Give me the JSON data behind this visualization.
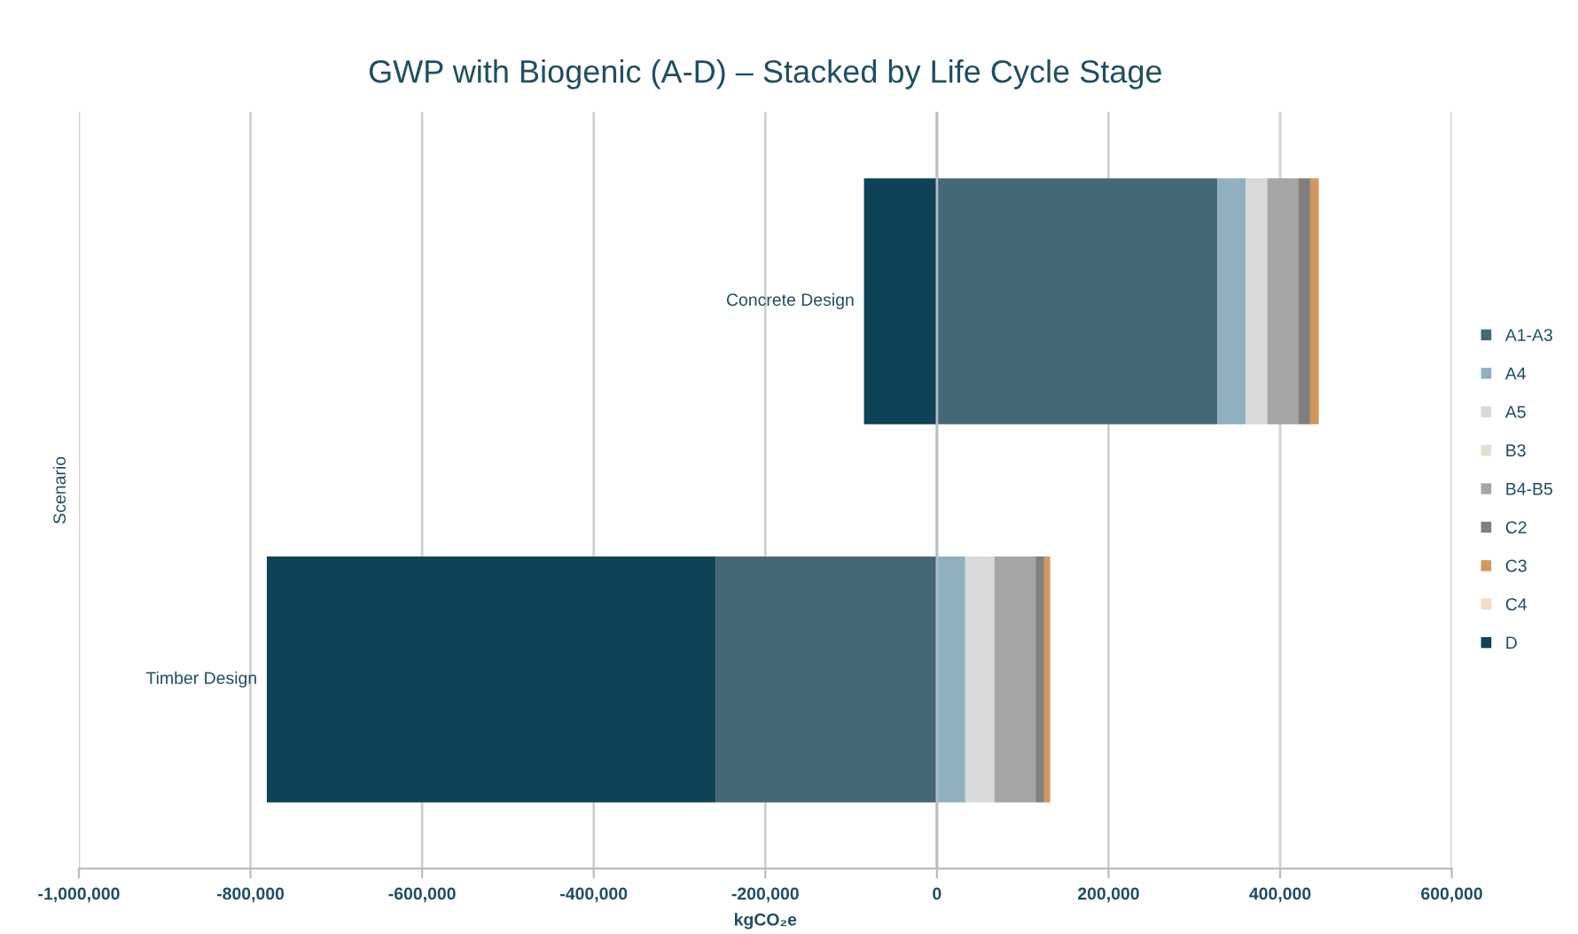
{
  "chart_data": {
    "type": "bar",
    "orientation": "horizontal",
    "stacked": true,
    "title": "GWP with Biogenic (A-D) – Stacked by Life Cycle Stage",
    "xlabel": "kgCO₂e",
    "ylabel": "Scenario",
    "categories": [
      "Concrete Design",
      "Timber Design"
    ],
    "series": [
      {
        "name": "A1-A3",
        "color": "#456877",
        "values": [
          327000,
          -258000
        ]
      },
      {
        "name": "A4",
        "color": "#8fb1bf",
        "values": [
          33000,
          33000
        ]
      },
      {
        "name": "A5",
        "color": "#d9d9d9",
        "values": [
          25000,
          34000
        ]
      },
      {
        "name": "B3",
        "color": "#e6dfd5",
        "values": [
          null,
          null
        ]
      },
      {
        "name": "B4-B5",
        "color": "#a5a5a5",
        "values": [
          36000,
          48000
        ]
      },
      {
        "name": "C2",
        "color": "#7f7f7f",
        "values": [
          14000,
          10000
        ]
      },
      {
        "name": "C3",
        "color": "#d3975e",
        "values": [
          10000,
          7000
        ]
      },
      {
        "name": "C4",
        "color": "#f2dcc4",
        "values": [
          null,
          null
        ]
      },
      {
        "name": "D",
        "color": "#0e4256",
        "values": [
          -85000,
          -523000
        ]
      }
    ],
    "xlim": [
      -1000000,
      600000
    ],
    "xticks": [
      {
        "value": -1000000,
        "label": "-1,000,000"
      },
      {
        "value": -800000,
        "label": "-800,000"
      },
      {
        "value": -600000,
        "label": "-600,000"
      },
      {
        "value": -400000,
        "label": "-400,000"
      },
      {
        "value": -200000,
        "label": "-200,000"
      },
      0,
      {
        "value": 200000,
        "label": "200,000"
      },
      {
        "value": 400000,
        "label": "400,000"
      },
      {
        "value": 600000,
        "label": "600,000"
      }
    ],
    "grid": "x",
    "legend": "right"
  }
}
